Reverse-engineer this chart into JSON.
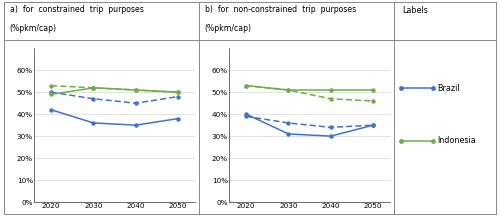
{
  "years": [
    2020,
    2030,
    2040,
    2050
  ],
  "panel_a_title1": "a)  for  constrained  trip  purposes",
  "panel_a_title2": "(%pkm/cap)",
  "panel_b_title1": "b)  for  non-constrained  trip  purposes",
  "panel_b_title2": "(%pkm/cap)",
  "labels_title": "Labels",
  "brazil_solid_a": [
    0.42,
    0.36,
    0.35,
    0.38
  ],
  "brazil_dashed_a": [
    0.5,
    0.47,
    0.45,
    0.48
  ],
  "indonesia_solid_a": [
    0.49,
    0.52,
    0.51,
    0.5
  ],
  "indonesia_dashed_a": [
    0.53,
    0.52,
    0.51,
    0.5
  ],
  "brazil_solid_b": [
    0.4,
    0.31,
    0.3,
    0.35
  ],
  "brazil_dashed_b": [
    0.39,
    0.36,
    0.34,
    0.35
  ],
  "indonesia_solid_b": [
    0.53,
    0.51,
    0.51,
    0.51
  ],
  "indonesia_dashed_b": [
    0.53,
    0.51,
    0.47,
    0.46
  ],
  "brazil_color": "#4472C4",
  "indonesia_color": "#70AD47",
  "bg_color": "#FFFFFF",
  "legend_brazil": "Brazil",
  "legend_indonesia": "Indonesia",
  "ylim_min": 0.0,
  "ylim_max": 0.7,
  "yticks": [
    0.0,
    0.1,
    0.2,
    0.3,
    0.4,
    0.5,
    0.6
  ],
  "ytick_labels": [
    "0%",
    "10%",
    "20%",
    "30%",
    "40%",
    "50%",
    "60%"
  ]
}
